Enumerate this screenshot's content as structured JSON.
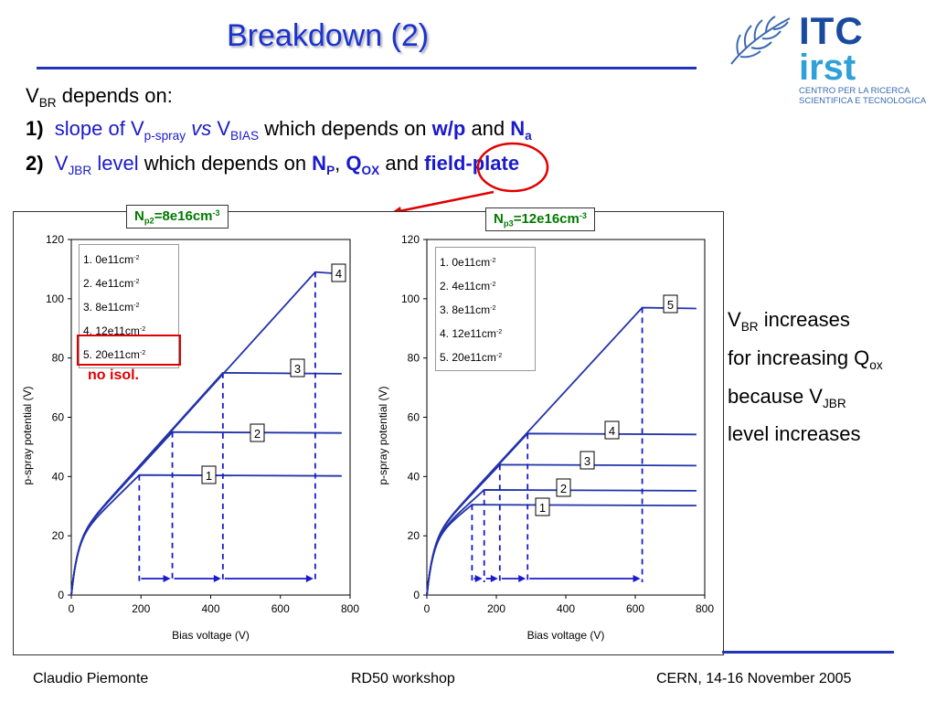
{
  "title": "Breakdown (2)",
  "intro": {
    "v": "V",
    "br": "BR",
    "rest": " depends on:"
  },
  "point1": {
    "num": "1)",
    "slope": "slope of V",
    "pspray": "p-spray",
    "vs": "vs",
    "v": "V",
    "bias": "BIAS",
    "which": " which depends on ",
    "wp": "w/p",
    "and": " and ",
    "n": "N",
    "a": "a"
  },
  "point2": {
    "num": "2)",
    "v": "V",
    "jbr": "JBR",
    "level": " level",
    "which": " which depends on ",
    "n": "N",
    "p": "P",
    "comma": ",",
    "q": "Q",
    "ox": "OX",
    "and": " and ",
    "fp": "field-plate"
  },
  "logo": {
    "itc": "ITC",
    "irst": "irst",
    "line1": "CENTRO PER LA RICERCA",
    "line2": "SCIENTIFICA E TECNOLOGICA"
  },
  "boxes": [
    {
      "n": "N",
      "sub": "p2",
      "eq": "=8e16cm",
      "sup": "-3"
    },
    {
      "n": "N",
      "sub": "p3",
      "eq": "=12e16cm",
      "sup": "-3"
    }
  ],
  "note": {
    "vbr": "V",
    "br": "BR",
    "l1": " increases",
    "l2": "for increasing Q",
    "ox": "ox",
    "l3": "because V",
    "jbr": "JBR",
    "l4": "level increases"
  },
  "no_isol": "no isol.",
  "footer": {
    "left": "Claudio Piemonte",
    "center": "RD50 workshop",
    "right": "CERN, 14-16 November 2005"
  },
  "colors": {
    "title": "#1a33cc",
    "curve": "#2233aa",
    "highlight": "#e00000",
    "box_text": "#007a00"
  },
  "chart_data": [
    {
      "type": "line",
      "xlabel": "Bias voltage (V)",
      "ylabel": "p-spray potential (V)",
      "xlim": [
        0,
        800
      ],
      "ylim": [
        0,
        120
      ],
      "xticks": [
        0,
        200,
        400,
        600,
        800
      ],
      "yticks": [
        0,
        20,
        40,
        60,
        80,
        100,
        120
      ],
      "legend": [
        "1.   0e11cm",
        "2.   4e11cm",
        "3.   8e11cm",
        "4. 12e11cm",
        "5. 20e11cm"
      ],
      "legend_sup": "-2",
      "series": [
        {
          "label": "1",
          "breakdown_x": 195,
          "plateau": 40.5
        },
        {
          "label": "2",
          "breakdown_x": 290,
          "plateau": 55
        },
        {
          "label": "3",
          "breakdown_x": 435,
          "plateau": 75
        },
        {
          "label": "4",
          "breakdown_x": 700,
          "plateau": 109
        }
      ]
    },
    {
      "type": "line",
      "xlabel": "Bias voltage (V)",
      "ylabel": "p-spray potential (V)",
      "xlim": [
        0,
        800
      ],
      "ylim": [
        0,
        120
      ],
      "xticks": [
        0,
        200,
        400,
        600,
        800
      ],
      "yticks": [
        0,
        20,
        40,
        60,
        80,
        100,
        120
      ],
      "legend": [
        "1.   0e11cm",
        "2.   4e11cm",
        "3.   8e11cm",
        "4. 12e11cm",
        "5. 20e11cm"
      ],
      "legend_sup": "-2",
      "series": [
        {
          "label": "1",
          "breakdown_x": 130,
          "plateau": 30.5
        },
        {
          "label": "2",
          "breakdown_x": 165,
          "plateau": 35.5
        },
        {
          "label": "3",
          "breakdown_x": 210,
          "plateau": 44
        },
        {
          "label": "4",
          "breakdown_x": 290,
          "plateau": 54.5
        },
        {
          "label": "5",
          "breakdown_x": 620,
          "plateau": 97
        }
      ]
    }
  ]
}
